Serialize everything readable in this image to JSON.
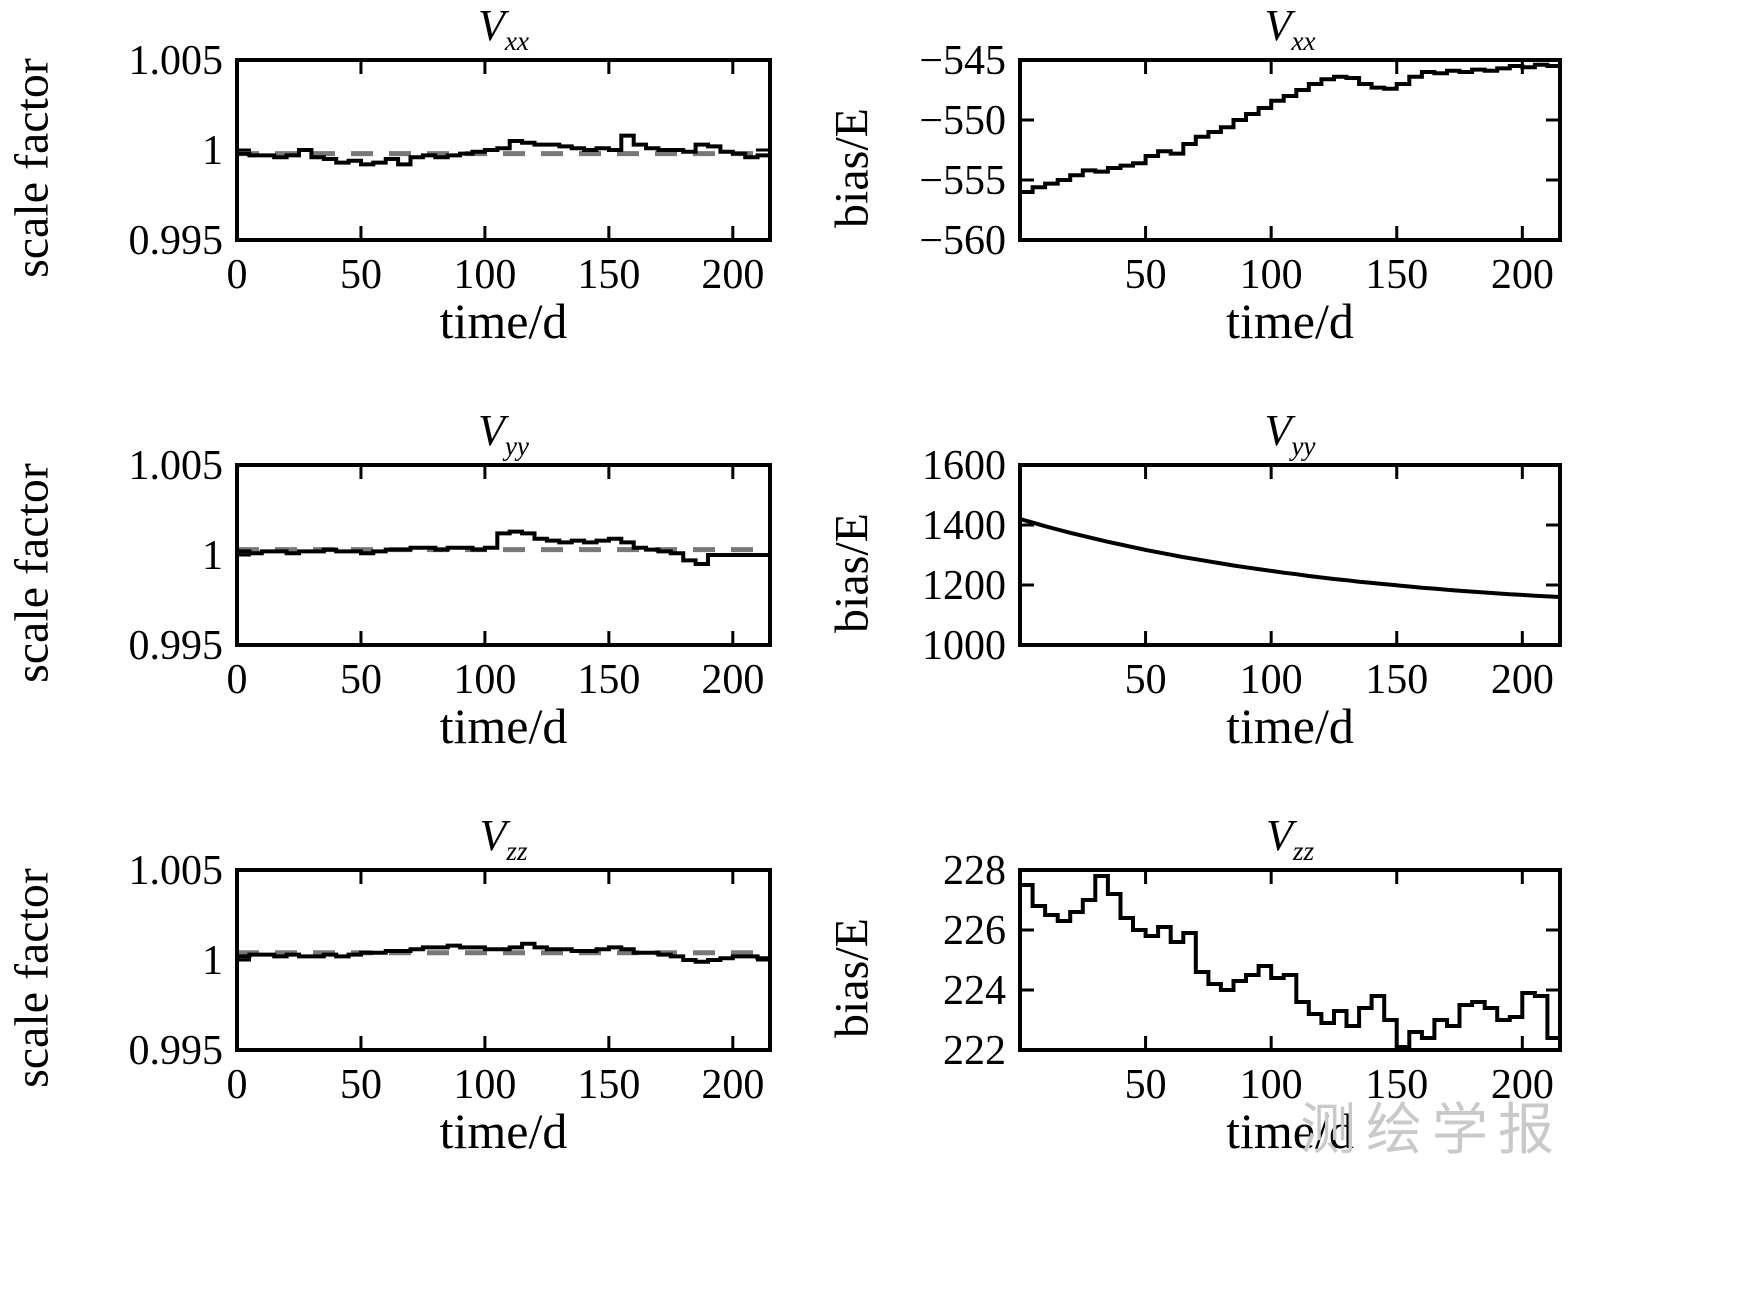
{
  "watermark": {
    "text": "测绘学报"
  },
  "chart_data": [
    {
      "type": "line",
      "id": "scale-vxx",
      "title_main": "V",
      "title_sub": "xx",
      "xlabel": "time/d",
      "ylabel": "scale factor",
      "xlim": [
        0,
        215
      ],
      "ylim": [
        0.995,
        1.005
      ],
      "xticks": [
        0,
        50,
        100,
        150,
        200
      ],
      "xtick_labels": [
        "0",
        "50",
        "100",
        "150",
        "200"
      ],
      "yticks": [
        0.995,
        1,
        1.005
      ],
      "ytick_labels": [
        "0.995",
        "1",
        "1.005"
      ],
      "grid": false,
      "legend": false,
      "step": true,
      "ref_line": {
        "value": 0.9998,
        "color": "#787878"
      },
      "x": [
        0,
        5,
        10,
        15,
        20,
        25,
        30,
        35,
        40,
        45,
        50,
        55,
        60,
        65,
        70,
        75,
        80,
        85,
        90,
        95,
        100,
        105,
        110,
        115,
        120,
        125,
        130,
        135,
        140,
        145,
        150,
        155,
        160,
        165,
        170,
        175,
        180,
        185,
        190,
        195,
        200,
        205,
        210,
        215
      ],
      "y": [
        0.9998,
        0.9997,
        0.9997,
        0.9996,
        0.9997,
        1.0,
        0.9996,
        0.9995,
        0.9993,
        0.9994,
        0.9992,
        0.9993,
        0.9995,
        0.9992,
        0.9996,
        0.9997,
        0.9996,
        0.9997,
        0.9998,
        0.9999,
        1.0,
        1.0001,
        1.0005,
        1.0004,
        1.0003,
        1.0003,
        1.0002,
        1.0001,
        1.0,
        1.0001,
        1.0,
        1.0008,
        1.0003,
        1.0001,
        1.0,
        1.0,
        0.9999,
        1.0003,
        1.0002,
        0.9999,
        0.9998,
        0.9996,
        0.9997,
        1.0
      ]
    },
    {
      "type": "line",
      "id": "bias-vxx",
      "title_main": "V",
      "title_sub": "xx",
      "xlabel": "time/d",
      "ylabel": "bias/E",
      "xlim": [
        0,
        215
      ],
      "ylim": [
        -560,
        -545
      ],
      "xticks": [
        50,
        100,
        150,
        200
      ],
      "xtick_labels": [
        "50",
        "100",
        "150",
        "200"
      ],
      "yticks": [
        -560,
        -555,
        -550,
        -545
      ],
      "ytick_labels": [
        "−560",
        "−555",
        "−550",
        "−545"
      ],
      "grid": false,
      "legend": false,
      "step": true,
      "ref_line": null,
      "x": [
        0,
        5,
        10,
        15,
        20,
        25,
        30,
        35,
        40,
        45,
        50,
        55,
        60,
        65,
        70,
        75,
        80,
        85,
        90,
        95,
        100,
        105,
        110,
        115,
        120,
        125,
        130,
        135,
        140,
        145,
        150,
        155,
        160,
        165,
        170,
        175,
        180,
        185,
        190,
        195,
        200,
        205,
        210,
        215
      ],
      "y": [
        -556.0,
        -555.6,
        -555.3,
        -555.0,
        -554.6,
        -554.2,
        -554.3,
        -554.0,
        -553.8,
        -553.6,
        -553.0,
        -552.6,
        -552.8,
        -552.0,
        -551.4,
        -551.0,
        -550.6,
        -550.0,
        -549.5,
        -549.0,
        -548.4,
        -548.0,
        -547.5,
        -547.0,
        -546.6,
        -546.4,
        -546.5,
        -547.0,
        -547.3,
        -547.4,
        -547.0,
        -546.4,
        -546.0,
        -546.1,
        -545.9,
        -546.0,
        -545.8,
        -545.9,
        -545.7,
        -545.5,
        -545.6,
        -545.4,
        -545.5,
        -545.3
      ]
    },
    {
      "type": "line",
      "id": "scale-vyy",
      "title_main": "V",
      "title_sub": "yy",
      "xlabel": "time/d",
      "ylabel": "scale factor",
      "xlim": [
        0,
        215
      ],
      "ylim": [
        0.995,
        1.005
      ],
      "xticks": [
        0,
        50,
        100,
        150,
        200
      ],
      "xtick_labels": [
        "0",
        "50",
        "100",
        "150",
        "200"
      ],
      "yticks": [
        0.995,
        1,
        1.005
      ],
      "ytick_labels": [
        "0.995",
        "1",
        "1.005"
      ],
      "grid": false,
      "legend": false,
      "step": true,
      "ref_line": {
        "value": 1.0003,
        "color": "#787878"
      },
      "x": [
        0,
        5,
        10,
        15,
        20,
        25,
        30,
        35,
        40,
        45,
        50,
        55,
        60,
        65,
        70,
        75,
        80,
        85,
        90,
        95,
        100,
        105,
        110,
        115,
        120,
        125,
        130,
        135,
        140,
        145,
        150,
        155,
        160,
        165,
        170,
        175,
        180,
        185,
        190,
        195,
        200,
        205,
        210,
        215
      ],
      "y": [
        1.0002,
        1.0001,
        1.0002,
        1.0002,
        1.0001,
        1.0002,
        1.0002,
        1.0003,
        1.0002,
        1.0002,
        1.0001,
        1.0002,
        1.0003,
        1.0003,
        1.0004,
        1.0004,
        1.0003,
        1.0004,
        1.0004,
        1.0003,
        1.0004,
        1.0012,
        1.0013,
        1.0012,
        1.0009,
        1.0008,
        1.0007,
        1.0008,
        1.0007,
        1.0008,
        1.0009,
        1.0007,
        1.0004,
        1.0003,
        1.0002,
        1.0001,
        0.9997,
        0.9995,
        1.0,
        1.0,
        1.0,
        1.0,
        1.0,
        0.9999
      ]
    },
    {
      "type": "line",
      "id": "bias-vyy",
      "title_main": "V",
      "title_sub": "yy",
      "xlabel": "time/d",
      "ylabel": "bias/E",
      "xlim": [
        0,
        215
      ],
      "ylim": [
        1000,
        1600
      ],
      "xticks": [
        50,
        100,
        150,
        200
      ],
      "xtick_labels": [
        "50",
        "100",
        "150",
        "200"
      ],
      "yticks": [
        1000,
        1200,
        1400,
        1600
      ],
      "ytick_labels": [
        "1000",
        "1200",
        "1400",
        "1600"
      ],
      "grid": false,
      "legend": false,
      "step": false,
      "ref_line": null,
      "x": [
        0,
        5,
        10,
        15,
        20,
        25,
        30,
        35,
        40,
        45,
        50,
        55,
        60,
        65,
        70,
        75,
        80,
        85,
        90,
        95,
        100,
        105,
        110,
        115,
        120,
        125,
        130,
        135,
        140,
        145,
        150,
        155,
        160,
        165,
        170,
        175,
        180,
        185,
        190,
        195,
        200,
        205,
        210,
        215
      ],
      "y": [
        1420,
        1408,
        1396,
        1385,
        1374,
        1364,
        1354,
        1344,
        1335,
        1326,
        1317,
        1309,
        1301,
        1293,
        1286,
        1279,
        1272,
        1265,
        1259,
        1253,
        1247,
        1241,
        1236,
        1230,
        1225,
        1220,
        1216,
        1211,
        1207,
        1203,
        1199,
        1195,
        1191,
        1188,
        1184,
        1181,
        1178,
        1175,
        1172,
        1169,
        1167,
        1164,
        1162,
        1160
      ]
    },
    {
      "type": "line",
      "id": "scale-vzz",
      "title_main": "V",
      "title_sub": "zz",
      "xlabel": "time/d",
      "ylabel": "scale factor",
      "xlim": [
        0,
        215
      ],
      "ylim": [
        0.995,
        1.005
      ],
      "xticks": [
        0,
        50,
        100,
        150,
        200
      ],
      "xtick_labels": [
        "0",
        "50",
        "100",
        "150",
        "200"
      ],
      "yticks": [
        0.995,
        1,
        1.005
      ],
      "ytick_labels": [
        "0.995",
        "1",
        "1.005"
      ],
      "grid": false,
      "legend": false,
      "step": true,
      "ref_line": {
        "value": 1.0004,
        "color": "#787878"
      },
      "x": [
        0,
        5,
        10,
        15,
        20,
        25,
        30,
        35,
        40,
        45,
        50,
        55,
        60,
        65,
        70,
        75,
        80,
        85,
        90,
        95,
        100,
        105,
        110,
        115,
        120,
        125,
        130,
        135,
        140,
        145,
        150,
        155,
        160,
        165,
        170,
        175,
        180,
        185,
        190,
        195,
        200,
        205,
        210,
        215
      ],
      "y": [
        1.0002,
        1.0003,
        1.0003,
        1.0002,
        1.0003,
        1.0002,
        1.0002,
        1.0003,
        1.0002,
        1.0003,
        1.0004,
        1.0004,
        1.0005,
        1.0005,
        1.0006,
        1.0007,
        1.0007,
        1.0008,
        1.0007,
        1.0007,
        1.0006,
        1.0006,
        1.0007,
        1.0009,
        1.0007,
        1.0006,
        1.0006,
        1.0005,
        1.0005,
        1.0006,
        1.0007,
        1.0006,
        1.0004,
        1.0004,
        1.0003,
        1.0002,
        1.0,
        0.9999,
        1.0,
        1.0001,
        1.0002,
        1.0002,
        1.0001,
        1.0001
      ]
    },
    {
      "type": "line",
      "id": "bias-vzz",
      "title_main": "V",
      "title_sub": "zz",
      "xlabel": "time/d",
      "ylabel": "bias/E",
      "xlim": [
        0,
        215
      ],
      "ylim": [
        222,
        228
      ],
      "xticks": [
        50,
        100,
        150,
        200
      ],
      "xtick_labels": [
        "50",
        "100",
        "150",
        "200"
      ],
      "yticks": [
        222,
        224,
        226,
        228
      ],
      "ytick_labels": [
        "222",
        "224",
        "226",
        "228"
      ],
      "grid": false,
      "legend": false,
      "step": true,
      "ref_line": null,
      "x": [
        0,
        5,
        10,
        15,
        20,
        25,
        30,
        35,
        40,
        45,
        50,
        55,
        60,
        65,
        70,
        75,
        80,
        85,
        90,
        95,
        100,
        105,
        110,
        115,
        120,
        125,
        130,
        135,
        140,
        145,
        150,
        155,
        160,
        165,
        170,
        175,
        180,
        185,
        190,
        195,
        200,
        205,
        210,
        215
      ],
      "y": [
        227.5,
        226.8,
        226.5,
        226.3,
        226.6,
        227.0,
        227.8,
        227.2,
        226.4,
        226.0,
        225.8,
        226.1,
        225.6,
        225.9,
        224.6,
        224.2,
        224.0,
        224.3,
        224.5,
        224.8,
        224.4,
        224.5,
        223.6,
        223.2,
        222.9,
        223.3,
        222.8,
        223.4,
        223.8,
        223.0,
        222.1,
        222.6,
        222.4,
        223.0,
        222.8,
        223.5,
        223.6,
        223.4,
        223.0,
        223.1,
        223.9,
        223.8,
        222.4,
        222.9
      ]
    }
  ]
}
